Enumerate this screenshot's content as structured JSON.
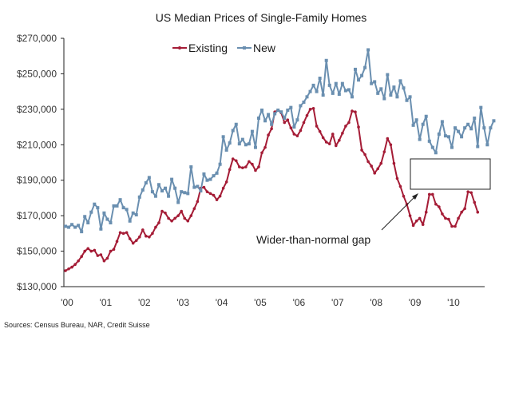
{
  "chart_data": {
    "type": "line",
    "title": "US Median Prices of Single-Family Homes",
    "xlabel": "",
    "ylabel": "",
    "ylim": [
      130000,
      270000
    ],
    "y_ticks": [
      130000,
      150000,
      170000,
      190000,
      210000,
      230000,
      250000,
      270000
    ],
    "y_tick_labels": [
      "$130,000",
      "$150,000",
      "$170,000",
      "$190,000",
      "$210,000",
      "$230,000",
      "$250,000",
      "$270,000"
    ],
    "x_tick_labels": [
      "'00",
      "'01",
      "'02",
      "'03",
      "'04",
      "'05",
      "'06",
      "'07",
      "'08",
      "'09",
      "'10"
    ],
    "x_start": "2000-01",
    "frequency": "monthly",
    "grid": false,
    "legend": {
      "placement": "top-center",
      "entries": [
        "Existing",
        "New"
      ]
    },
    "series": [
      {
        "name": "Existing",
        "color": "#a51c36",
        "values": [
          139000,
          140000,
          141000,
          142500,
          144500,
          147000,
          150000,
          151500,
          150000,
          150500,
          147500,
          148000,
          144500,
          146000,
          150000,
          151000,
          155500,
          160500,
          160000,
          160500,
          157000,
          154500,
          156000,
          158000,
          162000,
          158500,
          158000,
          160000,
          163500,
          166000,
          172500,
          171500,
          168500,
          167000,
          168500,
          170000,
          172500,
          168500,
          167000,
          170000,
          174000,
          178000,
          185500,
          186000,
          183500,
          182500,
          181500,
          179000,
          181000,
          185500,
          189000,
          196000,
          202000,
          201000,
          197500,
          197000,
          197500,
          200500,
          199000,
          195500,
          197500,
          205500,
          208500,
          215500,
          219000,
          228500,
          229500,
          228000,
          222500,
          224000,
          219500,
          216000,
          215000,
          218000,
          222500,
          226500,
          230000,
          230500,
          220500,
          217500,
          214000,
          211500,
          210500,
          216000,
          209500,
          212500,
          216500,
          220500,
          222500,
          229000,
          228500,
          220000,
          207000,
          204500,
          200500,
          198000,
          194000,
          196500,
          199500,
          206000,
          213500,
          210000,
          199500,
          191000,
          186500,
          181000,
          176500,
          170000,
          164500,
          167000,
          168500,
          165000,
          172000,
          182000,
          182000,
          176500,
          175000,
          171000,
          168500,
          168000,
          164000,
          164000,
          168500,
          172000,
          174000,
          183500,
          183000,
          177500,
          172000
        ]
      },
      {
        "name": "New",
        "color": "#6a8fb0",
        "values": [
          164000,
          163500,
          165000,
          163500,
          164500,
          161000,
          169500,
          166000,
          172000,
          176500,
          174500,
          162500,
          171500,
          168000,
          166000,
          175500,
          175500,
          179000,
          174500,
          173500,
          167000,
          171500,
          170500,
          180500,
          184500,
          188500,
          191500,
          183500,
          181000,
          187500,
          184000,
          185500,
          181000,
          190500,
          185500,
          177500,
          183500,
          183000,
          182500,
          197500,
          186000,
          186500,
          184000,
          193500,
          190000,
          190500,
          192500,
          194000,
          199000,
          214500,
          207000,
          211000,
          218000,
          221500,
          210500,
          213000,
          210000,
          210500,
          217500,
          208500,
          225000,
          229500,
          223500,
          227000,
          221500,
          227500,
          229500,
          228500,
          225000,
          229500,
          231000,
          220000,
          224000,
          232000,
          234000,
          237000,
          240000,
          243500,
          240000,
          247500,
          238000,
          257500,
          243500,
          239000,
          244500,
          238500,
          244500,
          240500,
          241000,
          237000,
          252500,
          246500,
          249000,
          253500,
          263500,
          244500,
          245500,
          239000,
          241500,
          236000,
          249500,
          238000,
          242500,
          237000,
          246000,
          242000,
          235000,
          237000,
          221000,
          224000,
          213000,
          221500,
          226000,
          212000,
          208500,
          205500,
          216000,
          223000,
          215000,
          214500,
          208500,
          219500,
          217500,
          214500,
          219500,
          221500,
          219000,
          225000,
          209000,
          231000,
          219500,
          210000,
          219500,
          223500
        ]
      }
    ],
    "annotations": [
      {
        "text": "Wider-than-normal gap",
        "points_to": "2009-06",
        "type": "arrow"
      },
      {
        "text": "",
        "type": "empty-box",
        "region": "2009-2010 between series"
      }
    ]
  },
  "source": "Sources: Census Bureau, NAR, Credit Suisse"
}
